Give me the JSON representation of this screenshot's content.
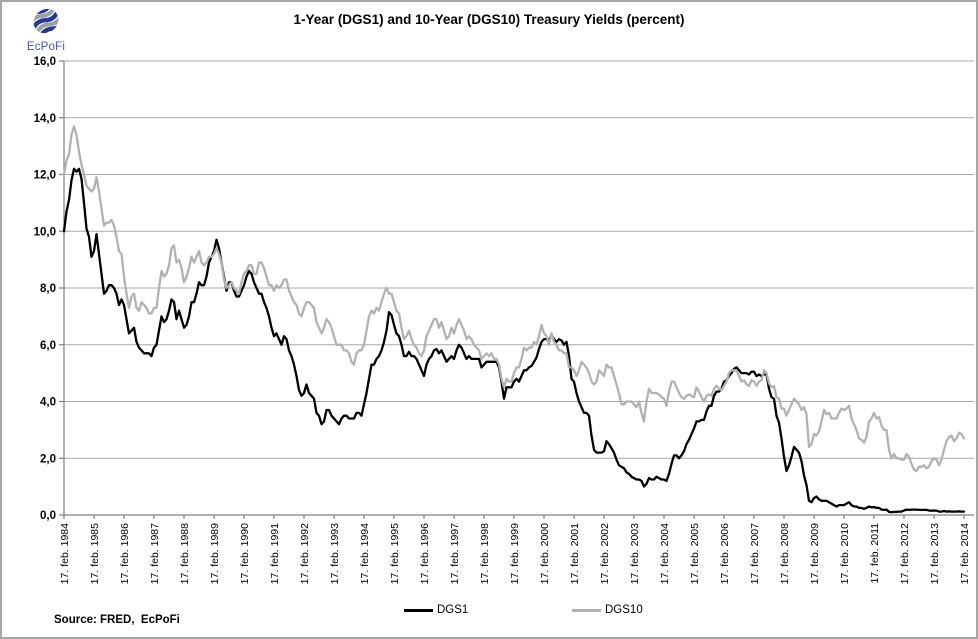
{
  "header": {
    "logo_text": "EcPoFi",
    "title": "1-Year (DGS1) and 10-Year (DGS10) Treasury Yields (percent)"
  },
  "footer": {
    "source": "Source: FRED,  EcPoFi"
  },
  "colors": {
    "dgs1_line": "#000000",
    "dgs10_line": "#b2b2b2",
    "gridline": "#a8a8a8",
    "axis": "#7f7f7f",
    "logo_blue": "#26388c",
    "logo_gray": "#9aa0a8",
    "text": "#000000"
  },
  "chart_data": {
    "type": "line",
    "title": "1-Year (DGS1) and 10-Year (DGS10) Treasury Yields (percent)",
    "xlabel": "",
    "ylabel": "",
    "ylim": [
      0,
      16
    ],
    "grid": true,
    "legend_position": "bottom",
    "y_tick_values": [
      0,
      2,
      4,
      6,
      8,
      10,
      12,
      14,
      16
    ],
    "y_tick_labels": [
      "0,0",
      "2,0",
      "4,0",
      "6,0",
      "8,0",
      "10,0",
      "12,0",
      "14,0",
      "16,0"
    ],
    "x_tick_labels": [
      "17. feb. 1984",
      "17. feb. 1985",
      "17. feb. 1986",
      "17. feb. 1987",
      "17. feb. 1988",
      "17. feb. 1989",
      "17. feb. 1990",
      "17. feb. 1991",
      "17. feb. 1992",
      "17. feb. 1993",
      "17. feb. 1994",
      "17. feb. 1995",
      "17. feb. 1996",
      "17. feb. 1997",
      "17. feb. 1998",
      "17. feb. 1999",
      "17. feb. 2000",
      "17. feb. 2001",
      "17. feb. 2002",
      "17. feb. 2003",
      "17. feb. 2004",
      "17. feb. 2005",
      "17. feb. 2006",
      "17. feb. 2007",
      "17. feb. 2008",
      "17. feb. 2009",
      "17. feb. 2010",
      "17. feb. 2011",
      "17. feb. 2012",
      "17. feb. 2013",
      "17. feb. 2014"
    ],
    "x_range": {
      "start": "1984-02",
      "end": "2014-02",
      "points_per_year": 12
    },
    "series": [
      {
        "name": "DGS1",
        "color": "#000000",
        "values": [
          10.0,
          10.7,
          11.1,
          11.8,
          12.2,
          12.1,
          12.2,
          11.85,
          11.0,
          10.1,
          9.8,
          9.1,
          9.3,
          9.9,
          9.2,
          8.5,
          7.8,
          7.9,
          8.1,
          8.1,
          8.0,
          7.8,
          7.4,
          7.6,
          7.4,
          6.9,
          6.4,
          6.5,
          6.6,
          6.1,
          5.9,
          5.8,
          5.7,
          5.7,
          5.7,
          5.6,
          5.9,
          6.0,
          6.5,
          7.0,
          6.8,
          6.9,
          7.2,
          7.6,
          7.5,
          6.9,
          7.2,
          6.9,
          6.6,
          6.7,
          7.0,
          7.5,
          7.5,
          7.8,
          8.2,
          8.1,
          8.1,
          8.4,
          8.9,
          9.1,
          9.3,
          9.7,
          9.4,
          8.9,
          8.4,
          7.9,
          8.2,
          8.2,
          7.9,
          7.7,
          7.7,
          7.9,
          8.1,
          8.4,
          8.6,
          8.5,
          8.2,
          8.0,
          7.8,
          7.8,
          7.5,
          7.3,
          7.0,
          6.6,
          6.3,
          6.4,
          6.2,
          6.0,
          6.3,
          6.2,
          5.8,
          5.6,
          5.3,
          4.9,
          4.4,
          4.2,
          4.3,
          4.6,
          4.3,
          4.2,
          4.1,
          3.6,
          3.5,
          3.2,
          3.3,
          3.7,
          3.7,
          3.5,
          3.4,
          3.3,
          3.2,
          3.4,
          3.5,
          3.5,
          3.4,
          3.4,
          3.4,
          3.6,
          3.6,
          3.5,
          3.9,
          4.3,
          4.8,
          5.3,
          5.3,
          5.5,
          5.6,
          5.8,
          6.1,
          6.5,
          7.15,
          7.05,
          6.7,
          6.4,
          6.3,
          6.0,
          5.6,
          5.6,
          5.75,
          5.6,
          5.6,
          5.5,
          5.3,
          5.1,
          4.9,
          5.3,
          5.5,
          5.6,
          5.8,
          5.85,
          5.7,
          5.8,
          5.6,
          5.4,
          5.5,
          5.6,
          5.5,
          5.8,
          6.0,
          5.9,
          5.7,
          5.5,
          5.6,
          5.5,
          5.5,
          5.5,
          5.5,
          5.2,
          5.3,
          5.4,
          5.4,
          5.4,
          5.4,
          5.4,
          5.2,
          4.7,
          4.1,
          4.5,
          4.5,
          4.5,
          4.7,
          4.8,
          4.7,
          4.9,
          5.1,
          5.1,
          5.2,
          5.25,
          5.4,
          5.55,
          5.85,
          6.1,
          6.2,
          6.2,
          6.15,
          6.35,
          6.2,
          6.1,
          6.2,
          6.15,
          6.0,
          6.1,
          5.6,
          4.8,
          4.7,
          4.3,
          4.0,
          3.8,
          3.6,
          3.6,
          3.5,
          2.8,
          2.3,
          2.2,
          2.2,
          2.2,
          2.25,
          2.6,
          2.5,
          2.35,
          2.2,
          1.95,
          1.75,
          1.7,
          1.65,
          1.5,
          1.45,
          1.35,
          1.3,
          1.25,
          1.25,
          1.2,
          1.0,
          1.1,
          1.3,
          1.25,
          1.25,
          1.35,
          1.3,
          1.25,
          1.25,
          1.2,
          1.45,
          1.8,
          2.1,
          2.1,
          2.0,
          2.1,
          2.25,
          2.5,
          2.65,
          2.85,
          3.05,
          3.3,
          3.3,
          3.35,
          3.35,
          3.65,
          3.85,
          3.85,
          4.2,
          4.35,
          4.35,
          4.45,
          4.7,
          4.75,
          4.9,
          5.0,
          5.15,
          5.2,
          5.1,
          5.0,
          5.0,
          5.0,
          4.95,
          5.05,
          5.05,
          4.9,
          4.95,
          4.9,
          4.95,
          4.95,
          4.45,
          4.15,
          4.1,
          3.5,
          3.25,
          2.7,
          2.05,
          1.55,
          1.75,
          2.05,
          2.4,
          2.3,
          2.2,
          1.9,
          1.4,
          1.05,
          0.5,
          0.45,
          0.6,
          0.65,
          0.55,
          0.5,
          0.5,
          0.5,
          0.45,
          0.4,
          0.35,
          0.3,
          0.35,
          0.35,
          0.35,
          0.4,
          0.45,
          0.35,
          0.3,
          0.3,
          0.25,
          0.25,
          0.22,
          0.25,
          0.3,
          0.27,
          0.28,
          0.25,
          0.25,
          0.19,
          0.18,
          0.19,
          0.11,
          0.1,
          0.11,
          0.11,
          0.12,
          0.12,
          0.16,
          0.19,
          0.18,
          0.19,
          0.19,
          0.19,
          0.18,
          0.18,
          0.18,
          0.18,
          0.16,
          0.15,
          0.16,
          0.15,
          0.12,
          0.12,
          0.14,
          0.12,
          0.13,
          0.12,
          0.12,
          0.12,
          0.13,
          0.12,
          0.12
        ]
      },
      {
        "name": "DGS10",
        "color": "#b2b2b2",
        "values": [
          12.0,
          12.5,
          12.7,
          13.4,
          13.7,
          13.4,
          12.8,
          12.35,
          12.0,
          11.6,
          11.5,
          11.4,
          11.5,
          11.9,
          11.4,
          10.8,
          10.2,
          10.3,
          10.3,
          10.4,
          10.2,
          9.8,
          9.3,
          9.2,
          8.4,
          7.8,
          7.3,
          7.7,
          7.8,
          7.3,
          7.2,
          7.5,
          7.4,
          7.3,
          7.1,
          7.1,
          7.3,
          7.3,
          8.0,
          8.6,
          8.4,
          8.5,
          8.8,
          9.4,
          9.5,
          8.9,
          9.0,
          8.7,
          8.2,
          8.4,
          8.7,
          9.1,
          8.9,
          9.1,
          9.3,
          8.9,
          8.8,
          8.9,
          9.1,
          9.1,
          9.2,
          9.4,
          9.2,
          8.9,
          8.3,
          8.0,
          8.1,
          8.2,
          8.0,
          7.9,
          7.8,
          8.2,
          8.5,
          8.6,
          8.8,
          8.8,
          8.5,
          8.5,
          8.9,
          8.9,
          8.7,
          8.4,
          8.1,
          8.1,
          7.9,
          8.1,
          8.0,
          8.1,
          8.3,
          8.3,
          7.9,
          7.7,
          7.5,
          7.4,
          7.1,
          7.0,
          7.3,
          7.5,
          7.5,
          7.4,
          7.3,
          6.8,
          6.6,
          6.4,
          6.6,
          6.9,
          6.8,
          6.6,
          6.3,
          6.0,
          6.0,
          6.0,
          5.8,
          5.8,
          5.7,
          5.4,
          5.3,
          5.7,
          5.8,
          5.8,
          6.0,
          6.5,
          7.0,
          7.2,
          7.1,
          7.3,
          7.2,
          7.5,
          7.8,
          8.0,
          7.8,
          7.8,
          7.5,
          7.2,
          7.1,
          6.6,
          6.2,
          6.3,
          6.5,
          6.2,
          6.0,
          5.9,
          5.7,
          5.6,
          5.8,
          6.3,
          6.5,
          6.7,
          6.9,
          6.9,
          6.6,
          6.8,
          6.5,
          6.2,
          6.3,
          6.6,
          6.4,
          6.7,
          6.9,
          6.7,
          6.5,
          6.2,
          6.3,
          6.2,
          6.0,
          5.9,
          5.8,
          5.5,
          5.6,
          5.7,
          5.6,
          5.7,
          5.5,
          5.5,
          5.3,
          4.8,
          4.5,
          4.8,
          4.7,
          4.7,
          5.0,
          5.2,
          5.2,
          5.5,
          5.9,
          5.8,
          5.9,
          5.9,
          6.1,
          6.0,
          6.3,
          6.7,
          6.4,
          6.3,
          6.0,
          6.4,
          6.1,
          6.0,
          5.8,
          5.8,
          5.7,
          5.7,
          5.2,
          5.2,
          5.1,
          4.9,
          5.1,
          5.4,
          5.3,
          5.2,
          5.0,
          4.7,
          4.6,
          4.7,
          5.1,
          5.0,
          4.9,
          5.3,
          5.2,
          5.2,
          4.9,
          4.6,
          4.3,
          3.9,
          3.9,
          4.0,
          4.0,
          4.0,
          3.9,
          3.8,
          4.0,
          3.6,
          3.3,
          4.0,
          4.45,
          4.3,
          4.3,
          4.3,
          4.25,
          4.15,
          4.1,
          3.85,
          4.35,
          4.7,
          4.7,
          4.5,
          4.3,
          4.15,
          4.1,
          4.2,
          4.25,
          4.2,
          4.15,
          4.5,
          4.35,
          4.15,
          4.0,
          4.2,
          4.25,
          4.2,
          4.45,
          4.55,
          4.45,
          4.4,
          4.55,
          4.7,
          5.0,
          5.1,
          5.1,
          5.1,
          4.9,
          4.7,
          4.75,
          4.6,
          4.55,
          4.75,
          4.7,
          4.55,
          4.7,
          4.75,
          5.1,
          5.0,
          4.65,
          4.5,
          4.55,
          4.15,
          4.1,
          3.75,
          3.75,
          3.5,
          3.7,
          3.9,
          4.1,
          4.0,
          3.9,
          3.7,
          3.8,
          3.55,
          2.4,
          2.5,
          2.85,
          2.8,
          2.95,
          3.3,
          3.7,
          3.55,
          3.6,
          3.4,
          3.4,
          3.4,
          3.6,
          3.75,
          3.7,
          3.75,
          3.85,
          3.4,
          3.2,
          3.0,
          2.7,
          2.65,
          2.55,
          2.75,
          3.3,
          3.4,
          3.6,
          3.4,
          3.45,
          3.15,
          3.0,
          3.0,
          2.3,
          2.0,
          2.15,
          2.0,
          2.0,
          1.95,
          1.95,
          2.15,
          2.05,
          1.8,
          1.6,
          1.55,
          1.7,
          1.7,
          1.75,
          1.65,
          1.7,
          1.9,
          2.0,
          1.95,
          1.75,
          1.95,
          2.3,
          2.6,
          2.75,
          2.8,
          2.6,
          2.7,
          2.9,
          2.85,
          2.7
        ]
      }
    ]
  }
}
